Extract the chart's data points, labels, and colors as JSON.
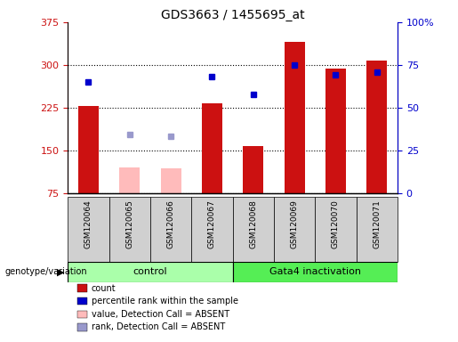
{
  "title": "GDS3663 / 1455695_at",
  "samples": [
    "GSM120064",
    "GSM120065",
    "GSM120066",
    "GSM120067",
    "GSM120068",
    "GSM120069",
    "GSM120070",
    "GSM120071"
  ],
  "counts": [
    228,
    null,
    null,
    232,
    158,
    340,
    293,
    308
  ],
  "absent_values": [
    null,
    120,
    118,
    null,
    null,
    null,
    null,
    null
  ],
  "percentile_ranks_lax": [
    270,
    null,
    null,
    280,
    248,
    300,
    282,
    288
  ],
  "absent_ranks_lax": [
    null,
    178,
    175,
    null,
    null,
    null,
    null,
    null
  ],
  "ylim_left": [
    75,
    375
  ],
  "ylim_right": [
    0,
    100
  ],
  "yticks_left": [
    75,
    150,
    225,
    300,
    375
  ],
  "yticks_right": [
    0,
    25,
    50,
    75,
    100
  ],
  "bar_color_present": "#cc1111",
  "bar_color_absent": "#ffbbbb",
  "dot_color_present": "#0000cc",
  "dot_color_absent": "#9999cc",
  "ctrl_color": "#aaffaa",
  "gata_color": "#55ee55",
  "axis_left_color": "#cc1111",
  "axis_right_color": "#0000cc",
  "sample_bg_color": "#d0d0d0",
  "legend_items": [
    {
      "label": "count",
      "color": "#cc1111"
    },
    {
      "label": "percentile rank within the sample",
      "color": "#0000cc"
    },
    {
      "label": "value, Detection Call = ABSENT",
      "color": "#ffbbbb"
    },
    {
      "label": "rank, Detection Call = ABSENT",
      "color": "#9999cc"
    }
  ]
}
